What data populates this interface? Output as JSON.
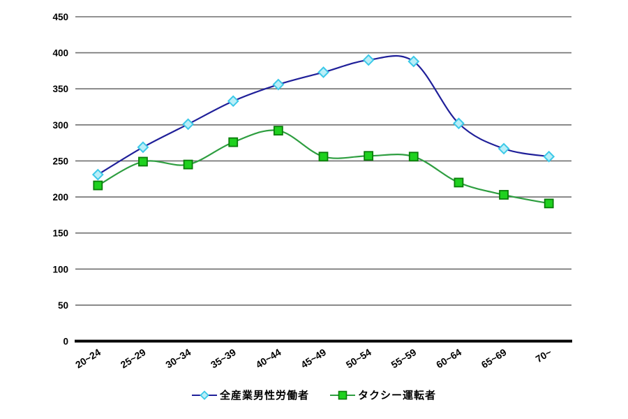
{
  "page": {
    "background_color": "#ffffff",
    "text_color": "#000000"
  },
  "chart_data": {
    "type": "line",
    "title": "",
    "xlabel": "",
    "ylabel": "",
    "categories": [
      "20~24",
      "25~29",
      "30~34",
      "35~39",
      "40~44",
      "45~49",
      "50~54",
      "55~59",
      "60~64",
      "65~69",
      "70~"
    ],
    "series": [
      {
        "name": "全産業男性労働者",
        "values": [
          231,
          269,
          301,
          333,
          356,
          373,
          390,
          388,
          302,
          267,
          256
        ],
        "line_color": "#1f1f99",
        "marker": "diamond",
        "marker_fill": "#b9eef8",
        "marker_stroke": "#3cc9e8"
      },
      {
        "name": "タクシー運転者",
        "values": [
          216,
          249,
          245,
          276,
          292,
          256,
          257,
          256,
          220,
          203,
          191
        ],
        "line_color": "#2e9e40",
        "marker": "square",
        "marker_fill": "#1fd11f",
        "marker_stroke": "#0a7d0a"
      }
    ],
    "ylim": [
      0,
      450
    ],
    "yticks": [
      0,
      50,
      100,
      150,
      200,
      250,
      300,
      350,
      400,
      450
    ],
    "grid": "horizontal",
    "gridline_color": "#6f6f6f",
    "axis_color": "#000000",
    "x_tick_rotation": -32,
    "smoothed": true,
    "legend_position": "bottom"
  }
}
